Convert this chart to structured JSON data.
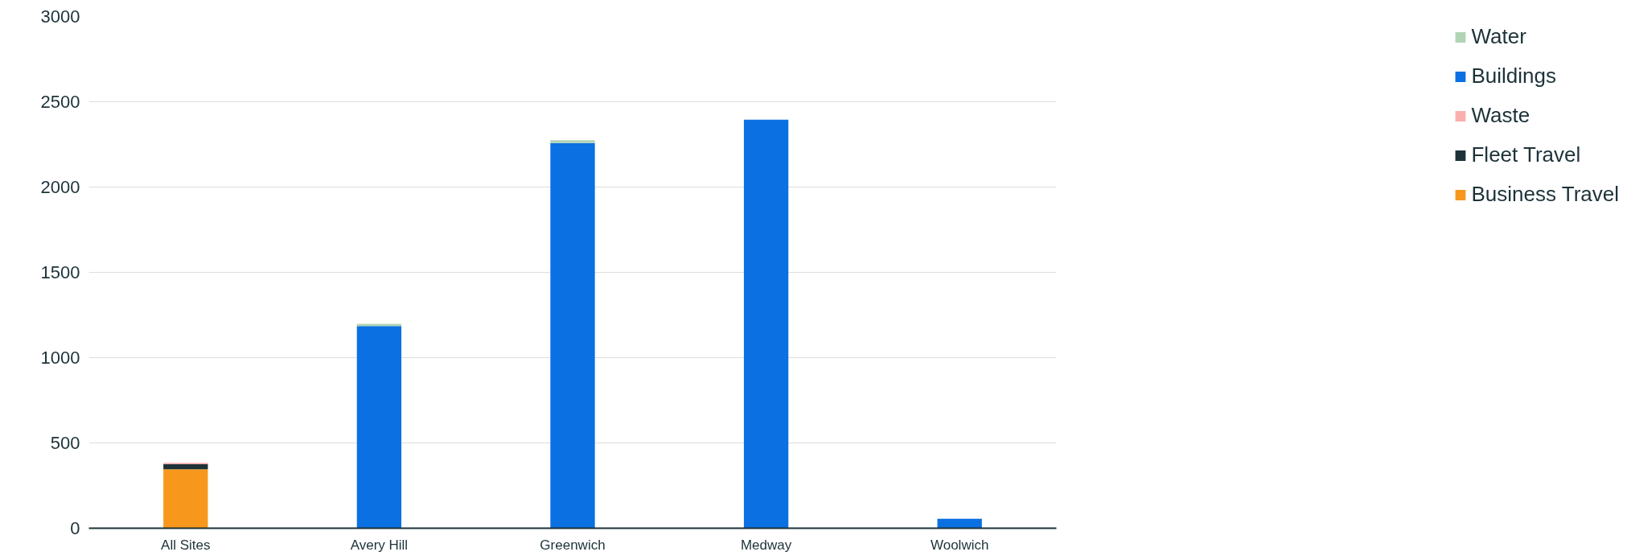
{
  "chart_data": {
    "type": "bar",
    "stacked": true,
    "categories": [
      "All Sites",
      "Avery Hill",
      "Greenwich",
      "Medway",
      "Woolwich"
    ],
    "series": [
      {
        "name": "Business Travel",
        "color": "#f7981d",
        "values": [
          346,
          0,
          0,
          0,
          0
        ]
      },
      {
        "name": "Fleet Travel",
        "color": "#1c3238",
        "values": [
          29,
          0,
          0,
          0,
          0
        ]
      },
      {
        "name": "Waste",
        "color": "#fbaeae",
        "values": [
          8,
          0,
          0,
          0,
          0
        ]
      },
      {
        "name": "Buildings",
        "color": "#0b71e2",
        "values": [
          0,
          1185,
          2258,
          2395,
          56
        ]
      },
      {
        "name": "Water",
        "color": "#b0d4b4",
        "values": [
          0,
          13,
          17,
          0,
          0
        ]
      }
    ],
    "ylim": [
      0,
      3000
    ],
    "yticks": [
      0,
      500,
      1000,
      1500,
      2000,
      2500,
      3000
    ],
    "grid": "y",
    "legend": "right"
  }
}
